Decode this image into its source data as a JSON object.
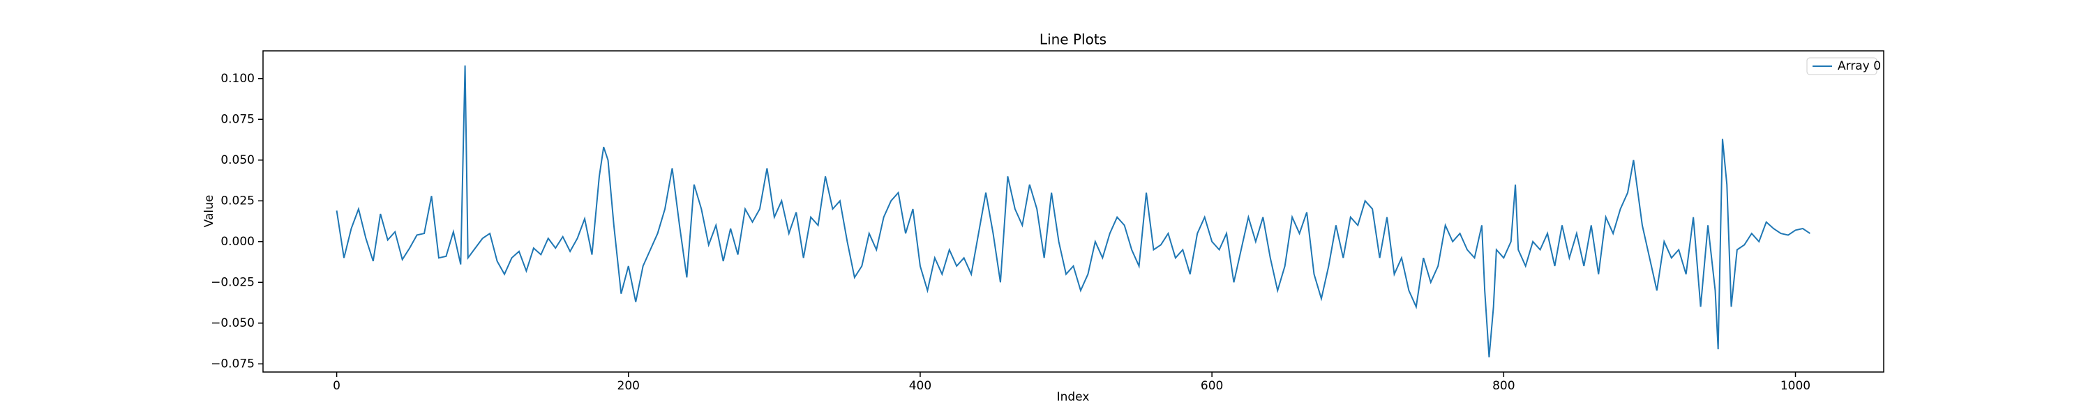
{
  "chart_data": {
    "type": "line",
    "title": "Line Plots",
    "x_label": "Index",
    "y_label": "Value",
    "x": [
      0,
      5,
      10,
      15,
      20,
      25,
      30,
      35,
      40,
      45,
      50,
      55,
      60,
      65,
      70,
      75,
      80,
      85,
      88,
      90,
      95,
      100,
      105,
      110,
      115,
      120,
      125,
      130,
      135,
      140,
      145,
      150,
      155,
      160,
      165,
      170,
      175,
      180,
      183,
      186,
      190,
      195,
      200,
      205,
      210,
      215,
      220,
      225,
      230,
      235,
      240,
      245,
      250,
      255,
      260,
      265,
      270,
      275,
      280,
      285,
      290,
      295,
      300,
      305,
      310,
      315,
      320,
      325,
      330,
      335,
      340,
      345,
      350,
      355,
      360,
      365,
      370,
      375,
      380,
      385,
      390,
      395,
      400,
      405,
      410,
      415,
      420,
      425,
      430,
      435,
      440,
      445,
      450,
      455,
      460,
      465,
      470,
      475,
      480,
      485,
      490,
      495,
      500,
      505,
      510,
      515,
      520,
      525,
      530,
      535,
      540,
      545,
      550,
      555,
      560,
      565,
      570,
      575,
      580,
      585,
      590,
      595,
      600,
      605,
      610,
      615,
      620,
      625,
      630,
      635,
      640,
      645,
      650,
      655,
      660,
      665,
      670,
      675,
      680,
      685,
      690,
      695,
      700,
      705,
      710,
      715,
      720,
      725,
      730,
      735,
      740,
      745,
      750,
      755,
      760,
      765,
      770,
      775,
      780,
      785,
      787,
      790,
      793,
      795,
      800,
      805,
      808,
      810,
      815,
      820,
      825,
      830,
      835,
      840,
      845,
      850,
      855,
      860,
      865,
      870,
      875,
      880,
      885,
      889,
      895,
      900,
      905,
      910,
      915,
      920,
      925,
      930,
      935,
      940,
      945,
      947,
      950,
      953,
      956,
      960,
      965,
      970,
      975,
      980,
      985,
      990,
      995,
      1000,
      1005,
      1010
    ],
    "series": [
      {
        "name": "Array 0",
        "color": "#1f77b4",
        "values": [
          0.019,
          -0.01,
          0.008,
          0.02,
          0.002,
          -0.012,
          0.017,
          0.001,
          0.006,
          -0.011,
          -0.004,
          0.004,
          0.005,
          0.028,
          -0.01,
          -0.009,
          0.006,
          -0.014,
          0.108,
          -0.01,
          -0.004,
          0.002,
          0.005,
          -0.012,
          -0.02,
          -0.01,
          -0.006,
          -0.018,
          -0.004,
          -0.008,
          0.002,
          -0.004,
          0.003,
          -0.006,
          0.002,
          0.014,
          -0.008,
          0.04,
          0.058,
          0.05,
          0.01,
          -0.032,
          -0.015,
          -0.037,
          -0.015,
          -0.005,
          0.005,
          0.02,
          0.045,
          0.01,
          -0.022,
          0.035,
          0.02,
          -0.002,
          0.01,
          -0.012,
          0.008,
          -0.008,
          0.02,
          0.012,
          0.02,
          0.045,
          0.015,
          0.025,
          0.005,
          0.018,
          -0.01,
          0.015,
          0.01,
          0.04,
          0.02,
          0.025,
          0.0,
          -0.022,
          -0.015,
          0.005,
          -0.005,
          0.015,
          0.025,
          0.03,
          0.005,
          0.02,
          -0.015,
          -0.03,
          -0.01,
          -0.02,
          -0.005,
          -0.015,
          -0.01,
          -0.02,
          0.005,
          0.03,
          0.005,
          -0.025,
          0.04,
          0.02,
          0.01,
          0.035,
          0.02,
          -0.01,
          0.03,
          0.0,
          -0.02,
          -0.015,
          -0.03,
          -0.02,
          0.0,
          -0.01,
          0.005,
          0.015,
          0.01,
          -0.005,
          -0.015,
          0.03,
          -0.005,
          -0.002,
          0.005,
          -0.01,
          -0.005,
          -0.02,
          0.005,
          0.015,
          0.0,
          -0.005,
          0.005,
          -0.025,
          -0.005,
          0.015,
          0.0,
          0.015,
          -0.01,
          -0.03,
          -0.015,
          0.015,
          0.005,
          0.018,
          -0.02,
          -0.035,
          -0.015,
          0.01,
          -0.01,
          0.015,
          0.01,
          0.025,
          0.02,
          -0.01,
          0.015,
          -0.02,
          -0.01,
          -0.03,
          -0.04,
          -0.01,
          -0.025,
          -0.015,
          0.01,
          0.0,
          0.005,
          -0.005,
          -0.01,
          0.01,
          -0.03,
          -0.071,
          -0.04,
          -0.005,
          -0.01,
          0.0,
          0.035,
          -0.005,
          -0.015,
          0.0,
          -0.005,
          0.005,
          -0.015,
          0.01,
          -0.01,
          0.005,
          -0.015,
          0.01,
          -0.02,
          0.015,
          0.005,
          0.02,
          0.03,
          0.05,
          0.01,
          -0.01,
          -0.03,
          0.0,
          -0.01,
          -0.005,
          -0.02,
          0.015,
          -0.04,
          0.01,
          -0.03,
          -0.066,
          0.063,
          0.035,
          -0.04,
          -0.005,
          -0.002,
          0.005,
          0.0,
          0.012,
          0.008,
          0.005,
          0.004,
          0.007,
          0.008,
          0.005
        ]
      }
    ],
    "xlim": [
      -50.5,
      1060.5
    ],
    "xticks": [
      0,
      200,
      400,
      600,
      800,
      1000
    ],
    "ylim": [
      -0.08,
      0.117
    ],
    "yticks": [
      {
        "value": -0.075,
        "label": "−0.075"
      },
      {
        "value": -0.05,
        "label": "−0.050"
      },
      {
        "value": -0.025,
        "label": "−0.025"
      },
      {
        "value": 0,
        "label": "0.000"
      },
      {
        "value": 0.025,
        "label": "0.025"
      },
      {
        "value": 0.05,
        "label": "0.050"
      },
      {
        "value": 0.075,
        "label": "0.075"
      },
      {
        "value": 0.1,
        "label": "0.100"
      }
    ],
    "grid": false,
    "legend": "upper right"
  }
}
